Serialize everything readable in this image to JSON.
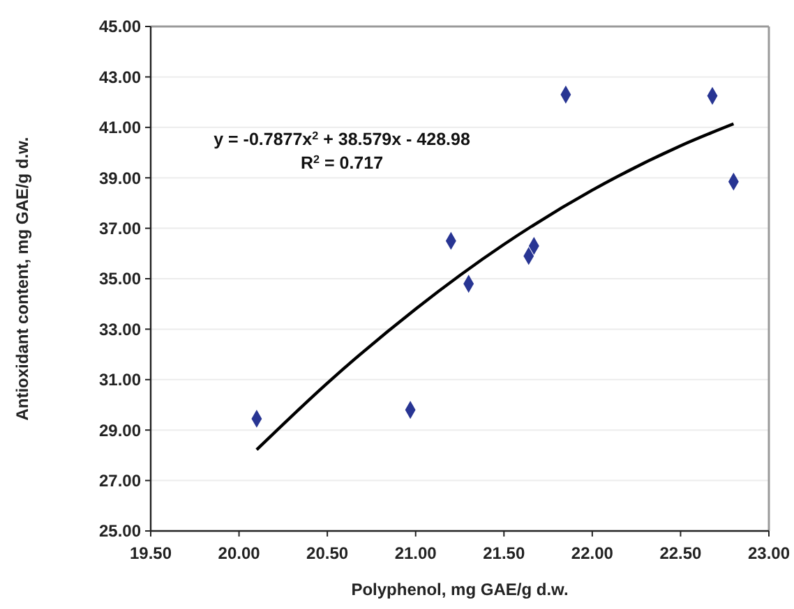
{
  "chart_data": {
    "type": "scatter",
    "xlabel": "Polyphenol, mg GAE/g d.w.",
    "ylabel": "Antioxidant content, mg GAE/g d.w.",
    "annotations": [
      "y = -0.7877x$^{2}$ + 38.579x - 428.98",
      "R$^{2}$ = 0.717"
    ],
    "grid": "y",
    "marker": "diamond",
    "xlim": [
      19.5,
      23
    ],
    "ylim": [
      25,
      45
    ],
    "xticks": [
      {
        "value": 19.5,
        "label": "19.50"
      },
      {
        "value": 20,
        "label": "20.00"
      },
      {
        "value": 20.5,
        "label": "20.50"
      },
      {
        "value": 21,
        "label": "21.00"
      },
      {
        "value": 21.5,
        "label": "21.50"
      },
      {
        "value": 22,
        "label": "22.00"
      },
      {
        "value": 22.5,
        "label": "22.50"
      },
      {
        "value": 23,
        "label": "23.00"
      }
    ],
    "yticks": [
      {
        "value": 25,
        "label": "25.00"
      },
      {
        "value": 27,
        "label": "27.00"
      },
      {
        "value": 29,
        "label": "29.00"
      },
      {
        "value": 31,
        "label": "31.00"
      },
      {
        "value": 33,
        "label": "33.00"
      },
      {
        "value": 35,
        "label": "35.00"
      },
      {
        "value": 37,
        "label": "37.00"
      },
      {
        "value": 39,
        "label": "39.00"
      },
      {
        "value": 41,
        "label": "41.00"
      },
      {
        "value": 43,
        "label": "43.00"
      },
      {
        "value": 45,
        "label": "45.00"
      }
    ],
    "series": [
      {
        "color": "#283593",
        "x": [
          20.1,
          20.97,
          21.2,
          21.3,
          21.64,
          21.67,
          21.85,
          22.68,
          22.8
        ],
        "values": [
          29.45,
          29.8,
          36.5,
          34.8,
          35.9,
          36.3,
          42.3,
          42.25,
          38.85
        ]
      },
      {
        "type": "line",
        "color": "#000000",
        "marker": "none",
        "x": [
          20.1,
          20.5,
          21,
          21.5,
          22,
          22.5,
          22.8
        ],
        "values": [
          28.22,
          30.86,
          33.8,
          36.36,
          38.51,
          40.27,
          41.14
        ]
      }
    ]
  }
}
